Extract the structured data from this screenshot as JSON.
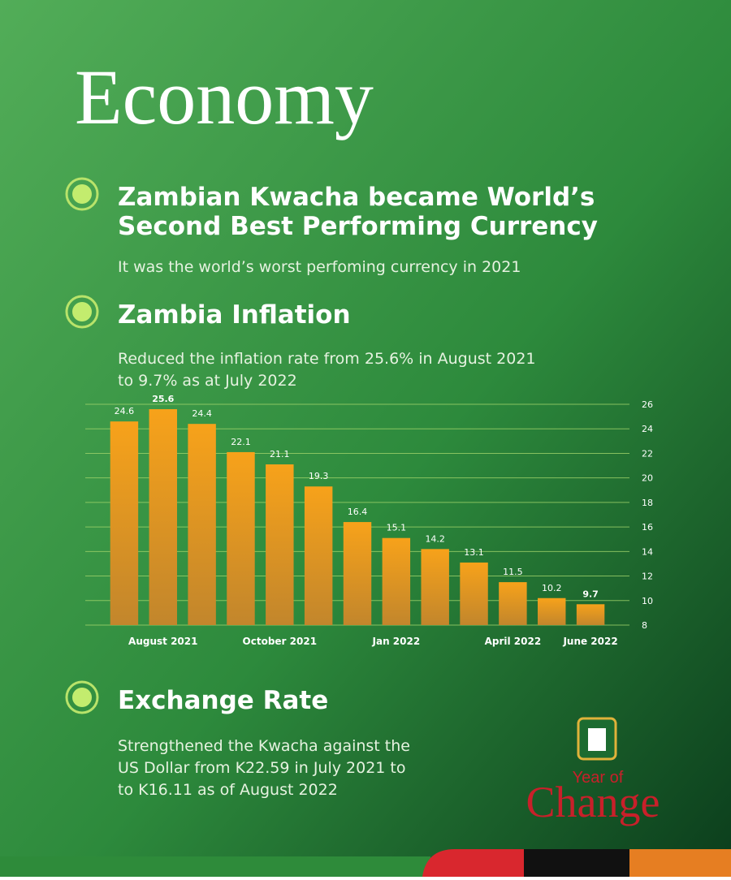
{
  "title": "Economy",
  "sections": [
    {
      "heading": [
        "Zambian Kwacha became World’s",
        "Second Best Performing Currency"
      ],
      "description": [
        "It was the world’s worst perfoming currency in 2021"
      ]
    },
    {
      "heading": [
        "Zambia Inflation"
      ],
      "description": [
        "Reduced the inflation rate from 25.6% in August 2021",
        "to 9.7% as at July 2022"
      ]
    },
    {
      "heading": [
        "Exchange Rate"
      ],
      "description": [
        "Strengthened the Kwacha against the",
        "US Dollar from K22.59 in July 2021 to",
        "to K16.11 as of August 2022"
      ]
    }
  ],
  "logo": {
    "line1": "Year of",
    "line2": "Change"
  },
  "chart_data": {
    "type": "bar",
    "categories": [
      null,
      "August 2021",
      null,
      null,
      "October 2021",
      null,
      null,
      "Jan 2022",
      null,
      null,
      "April 2022",
      null,
      "June 2022"
    ],
    "values": [
      24.6,
      25.6,
      24.4,
      22.1,
      21.1,
      19.3,
      16.4,
      15.1,
      14.2,
      13.1,
      11.5,
      10.2,
      9.7
    ],
    "color": "#f3a020",
    "ylim": [
      8,
      26
    ],
    "yticks": [
      8,
      10,
      12,
      14,
      16,
      18,
      20,
      22,
      24,
      26
    ],
    "grid": true
  }
}
